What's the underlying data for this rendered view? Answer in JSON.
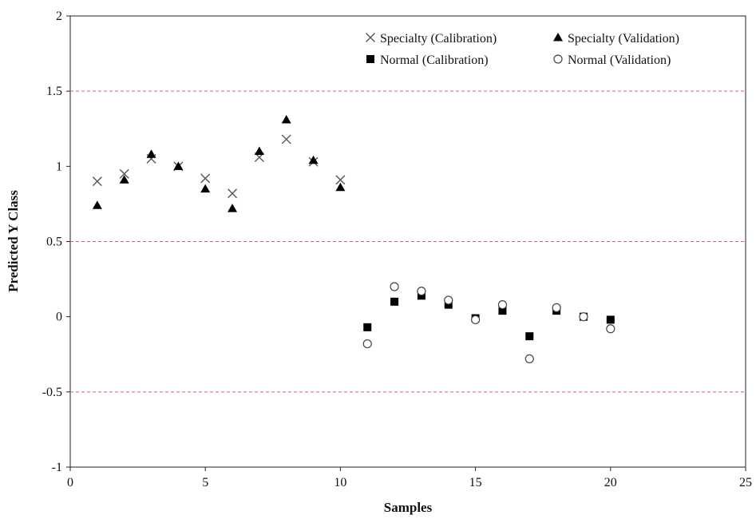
{
  "chart_data": {
    "type": "scatter",
    "title": "",
    "xlabel": "Samples",
    "ylabel": "Predicted Y Class",
    "xlim": [
      0,
      25
    ],
    "ylim": [
      -1,
      2
    ],
    "x_ticks": [
      0,
      5,
      10,
      15,
      20,
      25
    ],
    "y_ticks": [
      -1,
      -0.5,
      0,
      0.5,
      1,
      1.5,
      2
    ],
    "grid": false,
    "reference_lines": [
      1.5,
      0.5,
      -0.5
    ],
    "reference_line_color": "#d96060",
    "legend_position": "top-right",
    "series": [
      {
        "name": "Specialty (Calibration)",
        "marker": "x",
        "x": [
          1,
          2,
          3,
          4,
          5,
          6,
          7,
          8,
          9,
          10
        ],
        "y": [
          0.9,
          0.95,
          1.05,
          1.0,
          0.92,
          0.82,
          1.06,
          1.18,
          1.03,
          0.91
        ]
      },
      {
        "name": "Specialty (Validation)",
        "marker": "triangle",
        "x": [
          1,
          2,
          3,
          4,
          5,
          6,
          7,
          8,
          9,
          10
        ],
        "y": [
          0.74,
          0.91,
          1.08,
          1.0,
          0.85,
          0.72,
          1.1,
          1.31,
          1.04,
          0.86
        ]
      },
      {
        "name": "Normal (Calibration)",
        "marker": "square",
        "x": [
          11,
          12,
          13,
          14,
          15,
          16,
          17,
          18,
          19,
          20
        ],
        "y": [
          -0.07,
          0.1,
          0.14,
          0.08,
          -0.01,
          0.04,
          -0.13,
          0.04,
          0.0,
          -0.02
        ]
      },
      {
        "name": "Normal (Validation)",
        "marker": "circle",
        "x": [
          11,
          12,
          13,
          14,
          15,
          16,
          17,
          18,
          19,
          20
        ],
        "y": [
          -0.18,
          0.2,
          0.17,
          0.11,
          -0.02,
          0.08,
          -0.28,
          0.06,
          0.0,
          -0.08
        ]
      }
    ]
  }
}
